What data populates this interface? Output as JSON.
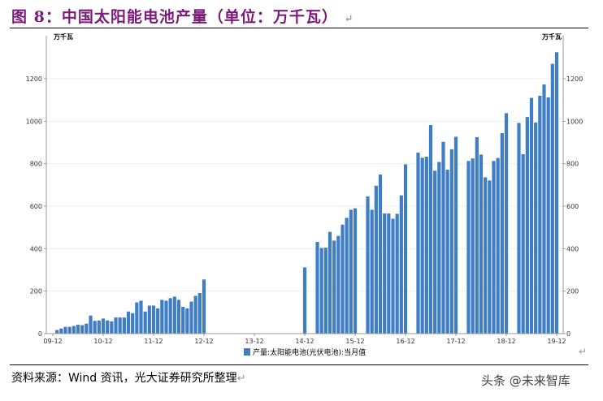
{
  "title": "图 8：中国太阳能电池产量（单位：万千瓦）",
  "source": "资料来源：Wind 资讯，光大证券研究所整理",
  "watermark": "头条 @未来智库",
  "colors": {
    "bar": "#3f7ec4",
    "title": "#7a1a7a"
  },
  "chart_data": {
    "type": "bar",
    "title": "",
    "ylabel_left": "万千瓦",
    "ylabel_right": "万千瓦",
    "ylim": [
      0,
      1350
    ],
    "yticks": [
      0,
      200,
      400,
      600,
      800,
      1000,
      1200
    ],
    "xtick_labels": [
      "09-12",
      "10-12",
      "11-12",
      "12-12",
      "13-12",
      "14-12",
      "15-12",
      "16-12",
      "17-12",
      "18-12",
      "19-12"
    ],
    "legend": {
      "position": "bottom",
      "label": "产量:太阳能电池(光伏电池):当月值"
    },
    "grid": true,
    "series": [
      {
        "name": "产量:太阳能电池(光伏电池):当月值",
        "points": [
          [
            "2010-01",
            17
          ],
          [
            "2010-02",
            24
          ],
          [
            "2010-03",
            32
          ],
          [
            "2010-04",
            32
          ],
          [
            "2010-05",
            36
          ],
          [
            "2010-06",
            42
          ],
          [
            "2010-07",
            40
          ],
          [
            "2010-08",
            47
          ],
          [
            "2010-09",
            85
          ],
          [
            "2010-10",
            60
          ],
          [
            "2010-11",
            62
          ],
          [
            "2010-12",
            71
          ],
          [
            "2011-01",
            62
          ],
          [
            "2011-02",
            58
          ],
          [
            "2011-03",
            76
          ],
          [
            "2011-04",
            76
          ],
          [
            "2011-05",
            76
          ],
          [
            "2011-06",
            104
          ],
          [
            "2011-07",
            96
          ],
          [
            "2011-08",
            147
          ],
          [
            "2011-09",
            155
          ],
          [
            "2011-10",
            104
          ],
          [
            "2011-11",
            132
          ],
          [
            "2011-12",
            132
          ],
          [
            "2012-01",
            119
          ],
          [
            "2012-02",
            159
          ],
          [
            "2012-03",
            155
          ],
          [
            "2012-04",
            167
          ],
          [
            "2012-05",
            174
          ],
          [
            "2012-06",
            159
          ],
          [
            "2012-07",
            126
          ],
          [
            "2012-08",
            119
          ],
          [
            "2012-09",
            151
          ],
          [
            "2012-10",
            178
          ],
          [
            "2012-11",
            191
          ],
          [
            "2012-12",
            255
          ],
          [
            "2014-12",
            312
          ],
          [
            "2015-03",
            432
          ],
          [
            "2015-04",
            403
          ],
          [
            "2015-05",
            405
          ],
          [
            "2015-06",
            479
          ],
          [
            "2015-07",
            438
          ],
          [
            "2015-08",
            460
          ],
          [
            "2015-09",
            513
          ],
          [
            "2015-10",
            545
          ],
          [
            "2015-11",
            583
          ],
          [
            "2015-12",
            590
          ],
          [
            "2016-03",
            646
          ],
          [
            "2016-04",
            583
          ],
          [
            "2016-05",
            696
          ],
          [
            "2016-06",
            749
          ],
          [
            "2016-07",
            566
          ],
          [
            "2016-08",
            566
          ],
          [
            "2016-09",
            541
          ],
          [
            "2016-10",
            564
          ],
          [
            "2016-11",
            651
          ],
          [
            "2016-12",
            797
          ],
          [
            "2017-03",
            852
          ],
          [
            "2017-04",
            828
          ],
          [
            "2017-05",
            833
          ],
          [
            "2017-06",
            982
          ],
          [
            "2017-07",
            767
          ],
          [
            "2017-08",
            808
          ],
          [
            "2017-09",
            903
          ],
          [
            "2017-10",
            772
          ],
          [
            "2017-11",
            868
          ],
          [
            "2017-12",
            927
          ],
          [
            "2018-03",
            813
          ],
          [
            "2018-04",
            825
          ],
          [
            "2018-05",
            925
          ],
          [
            "2018-06",
            843
          ],
          [
            "2018-07",
            736
          ],
          [
            "2018-08",
            721
          ],
          [
            "2018-09",
            813
          ],
          [
            "2018-10",
            827
          ],
          [
            "2018-11",
            944
          ],
          [
            "2018-12",
            1038
          ],
          [
            "2019-03",
            992
          ],
          [
            "2019-04",
            845
          ],
          [
            "2019-05",
            1020
          ],
          [
            "2019-06",
            1110
          ],
          [
            "2019-07",
            994
          ],
          [
            "2019-08",
            1120
          ],
          [
            "2019-09",
            1173
          ],
          [
            "2019-10",
            1112
          ],
          [
            "2019-11",
            1270
          ],
          [
            "2019-12",
            1325
          ]
        ]
      }
    ]
  }
}
